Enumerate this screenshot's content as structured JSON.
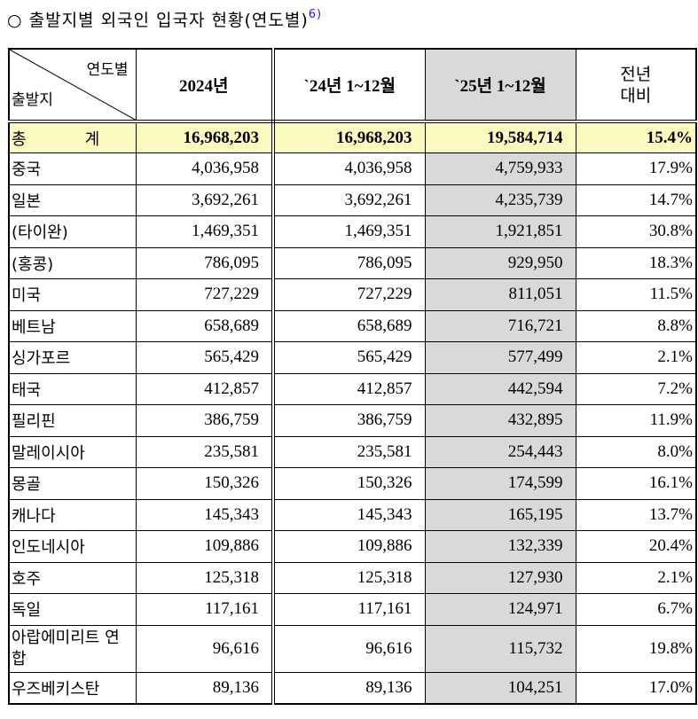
{
  "title": {
    "text": "○ 출발지별 외국인 입국자 현황(연도별)",
    "footnote": "6)"
  },
  "header": {
    "corner_top": "연도별",
    "corner_bottom": "출발지",
    "col1": "2024년",
    "col2": "`24년 1~12월",
    "col3": "`25년 1~12월",
    "col4_line1": "전년",
    "col4_line2": "대비"
  },
  "total": {
    "label_1": "총",
    "label_2": "계",
    "v2024": "16,968,203",
    "v24": "16,968,203",
    "v25": "19,584,714",
    "pct": "15.4%"
  },
  "rows": [
    {
      "name": "중국",
      "v2024": "4,036,958",
      "v24": "4,036,958",
      "v25": "4,759,933",
      "pct": "17.9%"
    },
    {
      "name": "일본",
      "v2024": "3,692,261",
      "v24": "3,692,261",
      "v25": "4,235,739",
      "pct": "14.7%"
    },
    {
      "name": "(타이완)",
      "v2024": "1,469,351",
      "v24": "1,469,351",
      "v25": "1,921,851",
      "pct": "30.8%"
    },
    {
      "name": "(홍콩)",
      "v2024": "786,095",
      "v24": "786,095",
      "v25": "929,950",
      "pct": "18.3%"
    },
    {
      "name": "미국",
      "v2024": "727,229",
      "v24": "727,229",
      "v25": "811,051",
      "pct": "11.5%"
    },
    {
      "name": "베트남",
      "v2024": "658,689",
      "v24": "658,689",
      "v25": "716,721",
      "pct": "8.8%"
    },
    {
      "name": "싱가포르",
      "v2024": "565,429",
      "v24": "565,429",
      "v25": "577,499",
      "pct": "2.1%"
    },
    {
      "name": "태국",
      "v2024": "412,857",
      "v24": "412,857",
      "v25": "442,594",
      "pct": "7.2%"
    },
    {
      "name": "필리핀",
      "v2024": "386,759",
      "v24": "386,759",
      "v25": "432,895",
      "pct": "11.9%"
    },
    {
      "name": "말레이시아",
      "v2024": "235,581",
      "v24": "235,581",
      "v25": "254,443",
      "pct": "8.0%"
    },
    {
      "name": "몽골",
      "v2024": "150,326",
      "v24": "150,326",
      "v25": "174,599",
      "pct": "16.1%"
    },
    {
      "name": "캐나다",
      "v2024": "145,343",
      "v24": "145,343",
      "v25": "165,195",
      "pct": "13.7%"
    },
    {
      "name": "인도네시아",
      "v2024": "109,886",
      "v24": "109,886",
      "v25": "132,339",
      "pct": "20.4%"
    },
    {
      "name": "호주",
      "v2024": "125,318",
      "v24": "125,318",
      "v25": "127,930",
      "pct": "2.1%"
    },
    {
      "name": "독일",
      "v2024": "117,161",
      "v24": "117,161",
      "v25": "124,971",
      "pct": "6.7%"
    },
    {
      "name": "아랍에미리트 연합",
      "v2024": "96,616",
      "v24": "96,616",
      "v25": "115,732",
      "pct": "19.8%"
    },
    {
      "name": "우즈베키스탄",
      "v2024": "89,136",
      "v24": "89,136",
      "v25": "104,251",
      "pct": "17.0%"
    }
  ],
  "colors": {
    "total_row_bg": "#fafac0",
    "shaded_column_bg": "#d9d9d9",
    "footnote": "#1a1aff"
  }
}
